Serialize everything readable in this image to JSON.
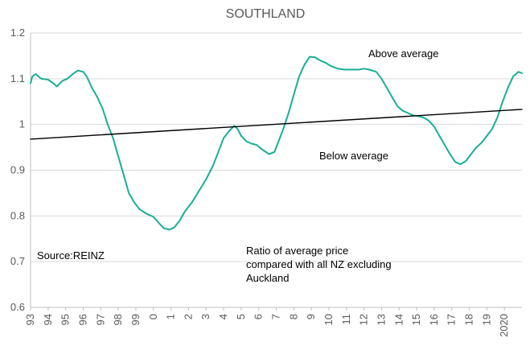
{
  "chart_data": {
    "type": "line",
    "title": "SOUTHLAND",
    "xlabel": "",
    "ylabel": "",
    "ylim": [
      0.6,
      1.2
    ],
    "xlim": [
      1993,
      2021
    ],
    "y_ticks": [
      "0.6",
      "0.7",
      "0.8",
      "0.9",
      "1",
      "1.1",
      "1.2"
    ],
    "x_ticks": [
      {
        "label": "93",
        "year": 1993
      },
      {
        "label": "94",
        "year": 1994
      },
      {
        "label": "95",
        "year": 1995
      },
      {
        "label": "96",
        "year": 1996
      },
      {
        "label": "97",
        "year": 1997
      },
      {
        "label": "98",
        "year": 1998
      },
      {
        "label": "99",
        "year": 1999
      },
      {
        "label": "0",
        "year": 2000
      },
      {
        "label": "1",
        "year": 2001
      },
      {
        "label": "2",
        "year": 2002
      },
      {
        "label": "3",
        "year": 2003
      },
      {
        "label": "4",
        "year": 2004
      },
      {
        "label": "5",
        "year": 2005
      },
      {
        "label": "6",
        "year": 2006
      },
      {
        "label": "7",
        "year": 2007
      },
      {
        "label": "8",
        "year": 2008
      },
      {
        "label": "9",
        "year": 2009
      },
      {
        "label": "10",
        "year": 2010
      },
      {
        "label": "11",
        "year": 2011
      },
      {
        "label": "12",
        "year": 2012
      },
      {
        "label": "13",
        "year": 2013
      },
      {
        "label": "14",
        "year": 2014
      },
      {
        "label": "15",
        "year": 2015
      },
      {
        "label": "16",
        "year": 2016
      },
      {
        "label": "17",
        "year": 2017
      },
      {
        "label": "18",
        "year": 2018
      },
      {
        "label": "19",
        "year": 2019
      },
      {
        "label": "2020",
        "year": 2020
      }
    ],
    "grid": "horizontal",
    "series": [
      {
        "color": "#1aae95",
        "points": [
          [
            1993.0,
            1.09
          ],
          [
            1993.1,
            1.105
          ],
          [
            1993.3,
            1.11
          ],
          [
            1993.6,
            1.1
          ],
          [
            1994.0,
            1.098
          ],
          [
            1994.3,
            1.09
          ],
          [
            1994.5,
            1.083
          ],
          [
            1994.8,
            1.095
          ],
          [
            1995.1,
            1.1
          ],
          [
            1995.4,
            1.11
          ],
          [
            1995.7,
            1.118
          ],
          [
            1996.0,
            1.115
          ],
          [
            1996.2,
            1.105
          ],
          [
            1996.5,
            1.08
          ],
          [
            1996.8,
            1.06
          ],
          [
            1997.1,
            1.035
          ],
          [
            1997.4,
            1.0
          ],
          [
            1997.7,
            0.97
          ],
          [
            1998.0,
            0.93
          ],
          [
            1998.3,
            0.89
          ],
          [
            1998.6,
            0.85
          ],
          [
            1998.9,
            0.83
          ],
          [
            1999.2,
            0.815
          ],
          [
            1999.6,
            0.805
          ],
          [
            2000.0,
            0.798
          ],
          [
            2000.3,
            0.785
          ],
          [
            2000.6,
            0.773
          ],
          [
            2000.9,
            0.77
          ],
          [
            2001.2,
            0.775
          ],
          [
            2001.5,
            0.79
          ],
          [
            2001.8,
            0.81
          ],
          [
            2002.2,
            0.83
          ],
          [
            2002.6,
            0.855
          ],
          [
            2003.0,
            0.88
          ],
          [
            2003.4,
            0.91
          ],
          [
            2003.7,
            0.94
          ],
          [
            2004.0,
            0.97
          ],
          [
            2004.3,
            0.985
          ],
          [
            2004.6,
            0.997
          ],
          [
            2004.8,
            0.99
          ],
          [
            2005.0,
            0.975
          ],
          [
            2005.3,
            0.963
          ],
          [
            2005.6,
            0.958
          ],
          [
            2005.9,
            0.955
          ],
          [
            2006.2,
            0.945
          ],
          [
            2006.6,
            0.935
          ],
          [
            2006.9,
            0.94
          ],
          [
            2007.1,
            0.96
          ],
          [
            2007.4,
            0.99
          ],
          [
            2007.7,
            1.025
          ],
          [
            2008.0,
            1.065
          ],
          [
            2008.3,
            1.105
          ],
          [
            2008.6,
            1.13
          ],
          [
            2008.9,
            1.148
          ],
          [
            2009.2,
            1.147
          ],
          [
            2009.5,
            1.14
          ],
          [
            2009.8,
            1.135
          ],
          [
            2010.1,
            1.128
          ],
          [
            2010.5,
            1.122
          ],
          [
            2010.9,
            1.12
          ],
          [
            2011.3,
            1.12
          ],
          [
            2011.7,
            1.12
          ],
          [
            2012.0,
            1.122
          ],
          [
            2012.3,
            1.12
          ],
          [
            2012.7,
            1.115
          ],
          [
            2013.0,
            1.1
          ],
          [
            2013.3,
            1.08
          ],
          [
            2013.6,
            1.06
          ],
          [
            2013.9,
            1.04
          ],
          [
            2014.2,
            1.03
          ],
          [
            2014.5,
            1.025
          ],
          [
            2014.8,
            1.02
          ],
          [
            2015.1,
            1.018
          ],
          [
            2015.4,
            1.015
          ],
          [
            2015.7,
            1.008
          ],
          [
            2016.0,
            0.995
          ],
          [
            2016.3,
            0.975
          ],
          [
            2016.6,
            0.955
          ],
          [
            2016.9,
            0.935
          ],
          [
            2017.2,
            0.918
          ],
          [
            2017.5,
            0.913
          ],
          [
            2017.8,
            0.92
          ],
          [
            2018.1,
            0.935
          ],
          [
            2018.4,
            0.95
          ],
          [
            2018.7,
            0.96
          ],
          [
            2019.0,
            0.975
          ],
          [
            2019.3,
            0.99
          ],
          [
            2019.6,
            1.015
          ],
          [
            2019.9,
            1.05
          ],
          [
            2020.2,
            1.08
          ],
          [
            2020.5,
            1.105
          ],
          [
            2020.8,
            1.115
          ],
          [
            2021.0,
            1.112
          ]
        ]
      },
      {
        "color": "#000000",
        "points": [
          [
            1993.0,
            0.968
          ],
          [
            2021.0,
            1.033
          ]
        ]
      }
    ],
    "annotations": [
      {
        "id": "above",
        "text": "Above average"
      },
      {
        "id": "below",
        "text": "Below average"
      },
      {
        "id": "source",
        "text": "Source:REINZ"
      },
      {
        "id": "ratio",
        "lines": [
          "Ratio of average price",
          "compared with all NZ excluding",
          "Auckland"
        ]
      }
    ],
    "colors": {
      "grid": "#d9d9d9",
      "axis_text": "#595959",
      "axis_line": "#bfbfbf"
    }
  }
}
